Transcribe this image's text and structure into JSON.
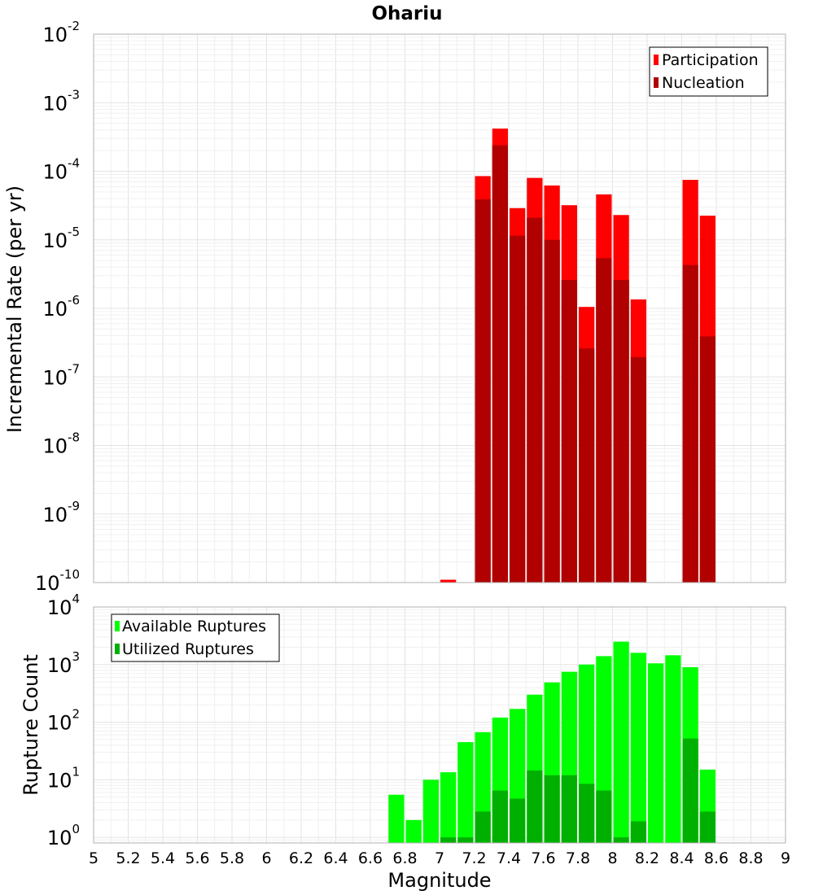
{
  "chart_data": [
    {
      "type": "bar",
      "title": "Ohariu",
      "xlabel": "",
      "ylabel": "Incremental Rate (per yr)",
      "yscale": "log",
      "ylim": [
        1e-10,
        0.01
      ],
      "xlim": [
        5,
        9
      ],
      "y_ticks": [
        {
          "base": "10",
          "exp": "-10"
        },
        {
          "base": "10",
          "exp": "-9"
        },
        {
          "base": "10",
          "exp": "-8"
        },
        {
          "base": "10",
          "exp": "-7"
        },
        {
          "base": "10",
          "exp": "-6"
        },
        {
          "base": "10",
          "exp": "-5"
        },
        {
          "base": "10",
          "exp": "-4"
        },
        {
          "base": "10",
          "exp": "-3"
        },
        {
          "base": "10",
          "exp": "-2"
        }
      ],
      "legend_position": "top-right",
      "x": [
        7.05,
        7.25,
        7.35,
        7.45,
        7.55,
        7.65,
        7.75,
        7.85,
        7.95,
        8.05,
        8.15,
        8.45,
        8.55
      ],
      "series": [
        {
          "name": "Participation",
          "color": "#ff0000",
          "values": [
            1.1e-10,
            8.5e-05,
            0.00042,
            2.9e-05,
            8e-05,
            6.2e-05,
            3.2e-05,
            1.05e-06,
            4.6e-05,
            2.3e-05,
            1.35e-06,
            7.5e-05,
            2.25e-05
          ]
        },
        {
          "name": "Nucleation",
          "color": "#b00000",
          "values": [
            1e-10,
            3.9e-05,
            0.00024,
            1.15e-05,
            2.1e-05,
            1e-05,
            2.6e-06,
            2.6e-07,
            5.4e-06,
            2.6e-06,
            1.95e-07,
            4.3e-06,
            3.9e-07
          ]
        }
      ]
    },
    {
      "type": "bar",
      "title": "",
      "xlabel": "Magnitude",
      "ylabel": "Rupture Count",
      "yscale": "log",
      "ylim": [
        0.8,
        10000.0
      ],
      "xlim": [
        5,
        9
      ],
      "x_ticks": [
        "5",
        "5.2",
        "5.4",
        "5.6",
        "5.8",
        "6",
        "6.2",
        "6.4",
        "6.6",
        "6.8",
        "7",
        "7.2",
        "7.4",
        "7.6",
        "7.8",
        "8",
        "8.2",
        "8.4",
        "8.6",
        "8.8",
        "9"
      ],
      "y_ticks": [
        {
          "base": "10",
          "exp": "0"
        },
        {
          "base": "10",
          "exp": "1"
        },
        {
          "base": "10",
          "exp": "2"
        },
        {
          "base": "10",
          "exp": "3"
        },
        {
          "base": "10",
          "exp": "4"
        }
      ],
      "legend_position": "top-left",
      "x": [
        6.75,
        6.85,
        6.95,
        7.05,
        7.15,
        7.25,
        7.35,
        7.45,
        7.55,
        7.65,
        7.75,
        7.85,
        7.95,
        8.05,
        8.15,
        8.25,
        8.35,
        8.45,
        8.55
      ],
      "series": [
        {
          "name": "Available Ruptures",
          "color": "#00ff00",
          "values": [
            5.5,
            2,
            10,
            13.5,
            45,
            67,
            120,
            170,
            300,
            490,
            750,
            1000,
            1400,
            2500,
            1600,
            1050,
            1450,
            900,
            15
          ]
        },
        {
          "name": "Utilized Ruptures",
          "color": "#00b000",
          "values": [
            0,
            0,
            0,
            1,
            1,
            2.8,
            6.5,
            4.7,
            14.5,
            12,
            12,
            8.5,
            6.5,
            1,
            1.9,
            0,
            0,
            52,
            2.8
          ]
        }
      ]
    }
  ]
}
